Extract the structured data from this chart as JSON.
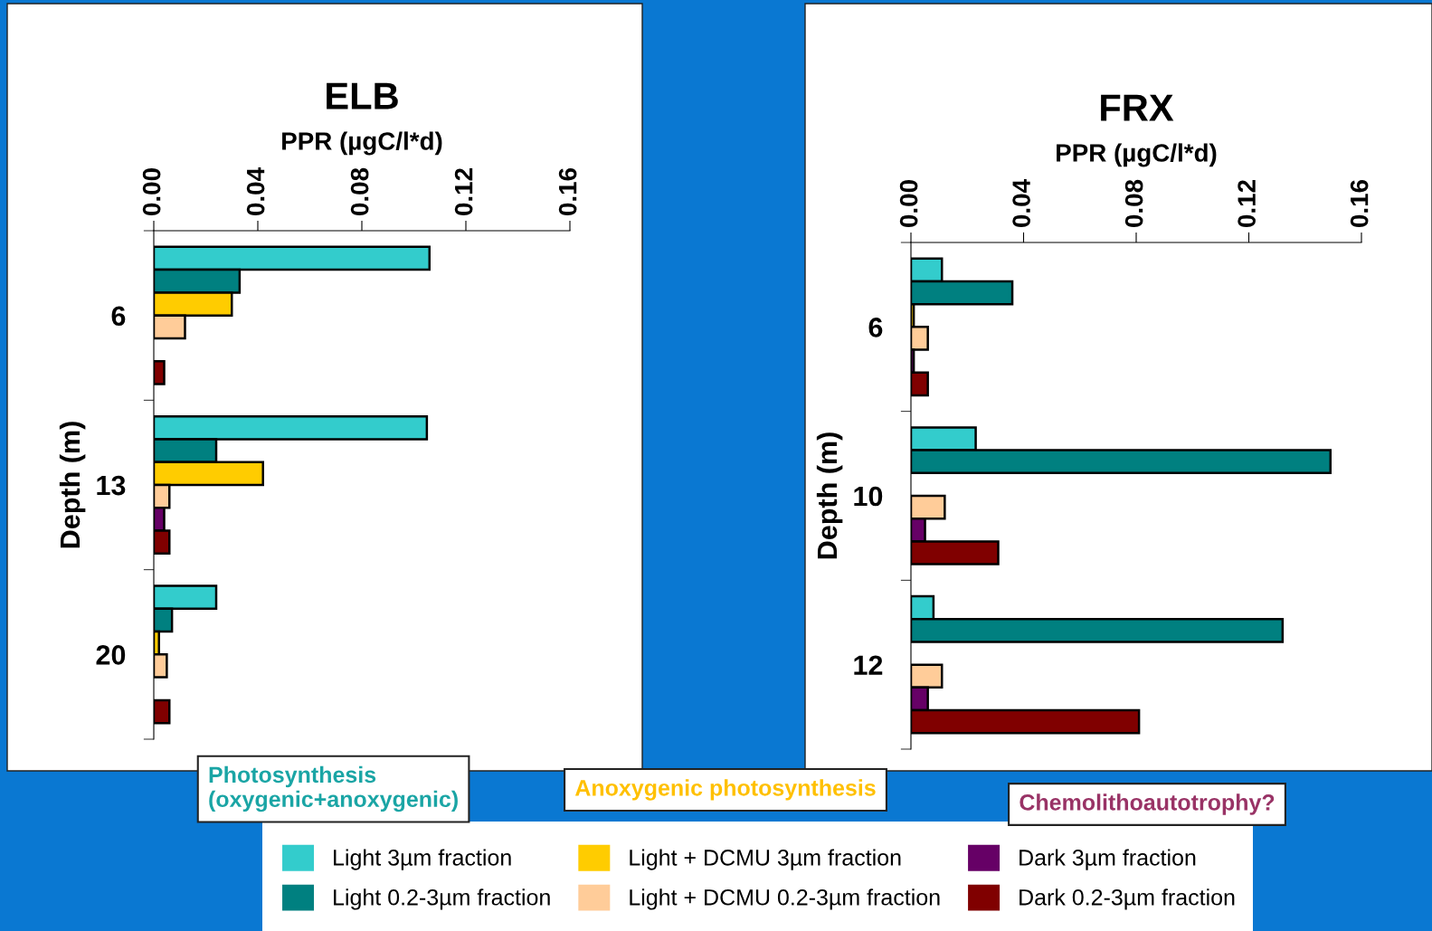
{
  "chart_data": [
    {
      "type": "bar",
      "orientation": "horizontal",
      "title": "ELB",
      "xlabel": "PPR (µgC/l*d)",
      "ylabel": "Depth (m)",
      "categories": [
        "6",
        "13",
        "20"
      ],
      "series": [
        {
          "name": "Light 3µm fraction",
          "color": "#33cccc",
          "values": [
            0.106,
            0.105,
            0.024
          ]
        },
        {
          "name": "Light 0.2-3µm fraction",
          "color": "#008080",
          "values": [
            0.033,
            0.024,
            0.007
          ]
        },
        {
          "name": "Light + DCMU 3µm fraction",
          "color": "#ffcc00",
          "values": [
            0.03,
            0.042,
            0.002
          ]
        },
        {
          "name": "Light + DCMU 0.2-3µm fraction",
          "color": "#ffcc99",
          "values": [
            0.012,
            0.006,
            0.005
          ]
        },
        {
          "name": "Dark 3µm fraction",
          "color": "#660066",
          "values": [
            null,
            0.004,
            null
          ]
        },
        {
          "name": "Dark 0.2-3µm fraction",
          "color": "#800000",
          "values": [
            0.004,
            0.006,
            0.006
          ]
        }
      ],
      "xlim": [
        0,
        0.16
      ],
      "xticks": [
        {
          "value": 0,
          "label": "0.00"
        },
        {
          "value": 0.04,
          "label": "0.04"
        },
        {
          "value": 0.08,
          "label": "0.08"
        },
        {
          "value": 0.12,
          "label": "0.12"
        },
        {
          "value": 0.16,
          "label": "0.16"
        }
      ],
      "legend": "bottom",
      "grid": false,
      "annotations": [
        "Photosynthesis\n(oxygenic+anoxygenic)",
        "Anoxygenic photosynthesis",
        "Chemolithoautotrophy?"
      ]
    },
    {
      "type": "bar",
      "orientation": "horizontal",
      "title": "FRX",
      "xlabel": "PPR (µgC/l*d)",
      "ylabel": "Depth (m)",
      "categories": [
        "6",
        "10",
        "12"
      ],
      "series": [
        {
          "color": "#33cccc",
          "values": [
            0.011,
            0.023,
            0.008
          ]
        },
        {
          "color": "#008080",
          "values": [
            0.036,
            0.149,
            0.132
          ]
        },
        {
          "color": "#ffcc00",
          "values": [
            0.001,
            null,
            null
          ]
        },
        {
          "color": "#ffcc99",
          "values": [
            0.006,
            0.012,
            0.011
          ]
        },
        {
          "color": "#660066",
          "values": [
            0.001,
            0.005,
            0.006
          ]
        },
        {
          "color": "#800000",
          "values": [
            0.006,
            0.031,
            0.081
          ]
        }
      ],
      "xlim": [
        0,
        0.16
      ],
      "xticks": [
        {
          "value": 0,
          "label": "0.00"
        },
        {
          "value": 0.04,
          "label": "0.04"
        },
        {
          "value": 0.08,
          "label": "0.08"
        },
        {
          "value": 0.12,
          "label": "0.12"
        },
        {
          "value": 0.16,
          "label": "0.16"
        }
      ],
      "grid": false
    }
  ]
}
